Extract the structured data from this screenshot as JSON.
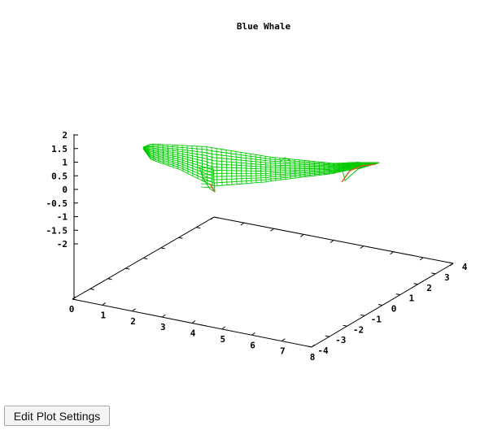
{
  "plot": {
    "title": "Blue Whale",
    "z_ticks": [
      "2",
      "1.5",
      "1",
      "0.5",
      "0",
      "-0.5",
      "-1",
      "-1.5",
      "-2"
    ],
    "x_ticks": [
      "0",
      "1",
      "2",
      "3",
      "4",
      "5",
      "6",
      "7",
      "8"
    ],
    "y_ticks": [
      "-4",
      "-3",
      "-2",
      "-1",
      "0",
      "1",
      "2",
      "3",
      "4"
    ],
    "mesh_color": "#00c800",
    "underside_color": "#c86428"
  },
  "button": {
    "edit_label": "Edit Plot Settings"
  }
}
